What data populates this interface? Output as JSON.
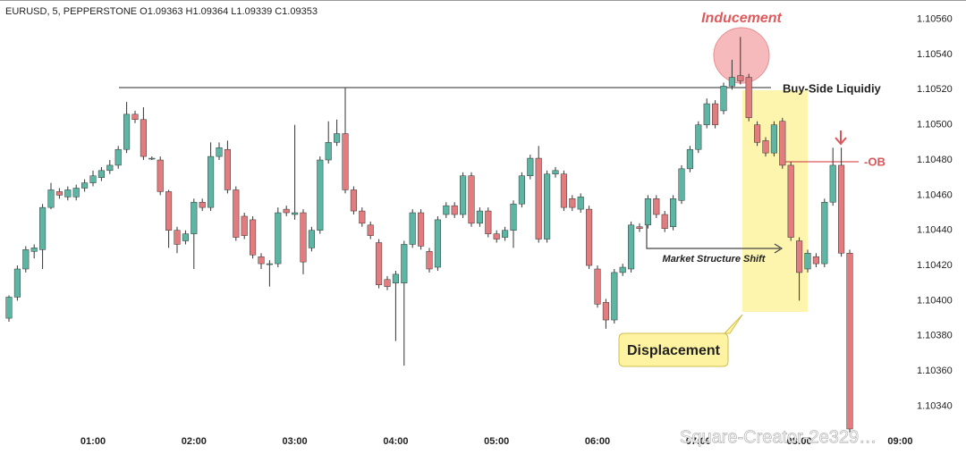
{
  "chart_data": {
    "type": "candlestick",
    "title": "EURUSD, 5, PEPPERSTONE  O1.09363 H1.09364 L1.09339 C1.09353",
    "open": [
      1.1039,
      1.10402,
      1.10418,
      1.10428,
      1.10429,
      1.10453,
      1.10462,
      1.10459,
      1.10459,
      1.10464,
      1.10467,
      1.1047,
      1.10474,
      1.10477,
      1.10486,
      1.10506,
      1.10503,
      1.10481,
      1.1048,
      1.10462,
      1.1044,
      1.10434,
      1.10438,
      1.10456,
      1.10453,
      1.10482,
      1.10486,
      1.10463,
      1.10448,
      1.10446,
      1.10425,
      1.10421,
      1.10421,
      1.10452,
      1.10449,
      1.1045,
      1.1043,
      1.1044,
      1.1048,
      1.1049,
      1.10495,
      1.10463,
      1.10451,
      1.10443,
      1.10433,
      1.10412,
      1.1041,
      1.1041,
      1.10432,
      1.1045,
      1.10428,
      1.10419,
      1.10449,
      1.10454,
      1.10449,
      1.10471,
      1.10444,
      1.10451,
      1.10438,
      1.10436,
      1.1044,
      1.10455,
      1.10471,
      1.10481,
      1.10435,
      1.10472,
      1.10472,
      1.10458,
      1.10452,
      1.10452,
      1.10418,
      1.10399,
      1.10389,
      1.10416,
      1.10418,
      1.10442,
      1.10443,
      1.10458,
      1.10449,
      1.10442,
      1.10457,
      1.10475,
      1.10486,
      1.105,
      1.10512,
      1.10508,
      1.10522,
      1.10528,
      1.10527,
      1.105,
      1.10491,
      1.10484,
      1.10502,
      1.10477,
      1.10434,
      1.10418,
      1.10425,
      1.10421,
      1.10456,
      1.10477,
      1.10427
    ],
    "high": [
      1.10403,
      1.1042,
      1.10431,
      1.10432,
      1.10455,
      1.10467,
      1.10464,
      1.10465,
      1.10466,
      1.10469,
      1.10474,
      1.10476,
      1.1048,
      1.10488,
      1.10513,
      1.10508,
      1.1051,
      1.10482,
      1.10482,
      1.10463,
      1.10442,
      1.1044,
      1.10458,
      1.10458,
      1.1049,
      1.1049,
      1.10491,
      1.10465,
      1.1045,
      1.10448,
      1.10427,
      1.10423,
      1.10453,
      1.10454,
      1.105,
      1.10452,
      1.10442,
      1.10482,
      1.10502,
      1.10503,
      1.10521,
      1.10465,
      1.10453,
      1.10445,
      1.10435,
      1.10414,
      1.10417,
      1.10434,
      1.10452,
      1.10452,
      1.1043,
      1.10448,
      1.10456,
      1.10456,
      1.10473,
      1.10473,
      1.10453,
      1.10453,
      1.1044,
      1.10442,
      1.10457,
      1.10473,
      1.10483,
      1.10488,
      1.10474,
      1.10476,
      1.10474,
      1.1046,
      1.10461,
      1.10454,
      1.1042,
      1.10401,
      1.10418,
      1.10421,
      1.10445,
      1.10444,
      1.1046,
      1.1046,
      1.10451,
      1.1046,
      1.10477,
      1.10488,
      1.10502,
      1.10515,
      1.10514,
      1.10524,
      1.10537,
      1.1055,
      1.10529,
      1.10502,
      1.10493,
      1.10502,
      1.10504,
      1.10479,
      1.10436,
      1.10429,
      1.10427,
      1.10458,
      1.10487,
      1.10487,
      1.10429
    ],
    "low": [
      1.10388,
      1.104,
      1.10416,
      1.10424,
      1.10418,
      1.10452,
      1.10458,
      1.10457,
      1.10457,
      1.10462,
      1.10465,
      1.10468,
      1.10472,
      1.10475,
      1.10484,
      1.10501,
      1.1048,
      1.1048,
      1.1046,
      1.1043,
      1.10427,
      1.10432,
      1.10418,
      1.10451,
      1.10451,
      1.1048,
      1.10461,
      1.10434,
      1.10435,
      1.10424,
      1.10418,
      1.10408,
      1.10419,
      1.10448,
      1.10446,
      1.10415,
      1.10428,
      1.10438,
      1.10478,
      1.10488,
      1.10461,
      1.10449,
      1.10442,
      1.10435,
      1.10407,
      1.10406,
      1.10377,
      1.10363,
      1.1043,
      1.10429,
      1.10416,
      1.10417,
      1.10447,
      1.10447,
      1.10447,
      1.10442,
      1.10442,
      1.10436,
      1.10433,
      1.10434,
      1.1043,
      1.10453,
      1.10469,
      1.10433,
      1.10433,
      1.1047,
      1.10451,
      1.10451,
      1.1045,
      1.10418,
      1.10396,
      1.10384,
      1.10387,
      1.10414,
      1.10416,
      1.10439,
      1.10441,
      1.10447,
      1.10439,
      1.1044,
      1.10455,
      1.10473,
      1.10484,
      1.10498,
      1.10498,
      1.10506,
      1.1052,
      1.10523,
      1.10502,
      1.10488,
      1.10482,
      1.10482,
      1.10475,
      1.10434,
      1.104,
      1.10416,
      1.10419,
      1.10419,
      1.10454,
      1.10425,
      1.10325
    ],
    "close": [
      1.10402,
      1.10418,
      1.10429,
      1.1043,
      1.10453,
      1.10463,
      1.1046,
      1.10463,
      1.10464,
      1.10467,
      1.10471,
      1.10474,
      1.10477,
      1.10486,
      1.10506,
      1.10503,
      1.10482,
      1.10481,
      1.10462,
      1.1044,
      1.10432,
      1.10438,
      1.10456,
      1.10453,
      1.10482,
      1.10487,
      1.10463,
      1.10436,
      1.10437,
      1.10426,
      1.10421,
      1.10421,
      1.1045,
      1.1045,
      1.1045,
      1.10422,
      1.1044,
      1.1048,
      1.1049,
      1.10495,
      1.10463,
      1.10451,
      1.10444,
      1.10437,
      1.10409,
      1.10408,
      1.10415,
      1.10432,
      1.1045,
      1.10431,
      1.10418,
      1.10446,
      1.10454,
      1.10449,
      1.10471,
      1.10444,
      1.10451,
      1.10438,
      1.10435,
      1.1044,
      1.10455,
      1.10471,
      1.10481,
      1.10435,
      1.10472,
      1.10474,
      1.10453,
      1.10453,
      1.10459,
      1.1042,
      1.10398,
      1.10389,
      1.10416,
      1.10419,
      1.10443,
      1.10441,
      1.10458,
      1.10449,
      1.10441,
      1.10458,
      1.10475,
      1.10486,
      1.105,
      1.10512,
      1.105,
      1.10522,
      1.10527,
      1.10525,
      1.10504,
      1.1049,
      1.10484,
      1.105,
      1.10477,
      1.10436,
      1.10416,
      1.10427,
      1.10421,
      1.10456,
      1.10477,
      1.10427,
      1.10327
    ],
    "up_color": "#5cb6a3",
    "down_color": "#e37c7e",
    "wick_color": "#333333",
    "xlim": [
      -1,
      111
    ],
    "xticks": [
      {
        "value": 10,
        "label": "01:00"
      },
      {
        "value": 22,
        "label": "02:00"
      },
      {
        "value": 34,
        "label": "03:00"
      },
      {
        "value": 46,
        "label": "04:00"
      },
      {
        "value": 58,
        "label": "05:00"
      },
      {
        "value": 70,
        "label": "06:00"
      },
      {
        "value": 82,
        "label": "07:00"
      },
      {
        "value": 94,
        "label": "08:00"
      },
      {
        "value": 106,
        "label": "09:00"
      }
    ],
    "ylim": [
      1.10327,
      1.10571
    ],
    "yticks": [
      {
        "value": 1.1034,
        "label": "1.10340"
      },
      {
        "value": 1.1036,
        "label": "1.10360"
      },
      {
        "value": 1.1038,
        "label": "1.10380"
      },
      {
        "value": 1.104,
        "label": "1.10400"
      },
      {
        "value": 1.1042,
        "label": "1.10420"
      },
      {
        "value": 1.1044,
        "label": "1.10440"
      },
      {
        "value": 1.1046,
        "label": "1.10460"
      },
      {
        "value": 1.1048,
        "label": "1.10480"
      },
      {
        "value": 1.105,
        "label": "1.10500"
      },
      {
        "value": 1.1052,
        "label": "1.10520"
      },
      {
        "value": 1.1054,
        "label": "1.10540"
      },
      {
        "value": 1.1056,
        "label": "1.10560"
      }
    ],
    "annotations": {
      "inducement": "Inducement",
      "liquidity": "Buy-Side Liquidiy",
      "order_block": "-OB",
      "structure_shift": "Market Structure Shift",
      "displacement": "Displacement",
      "watermark": "Square-Creator-2e329…"
    }
  }
}
